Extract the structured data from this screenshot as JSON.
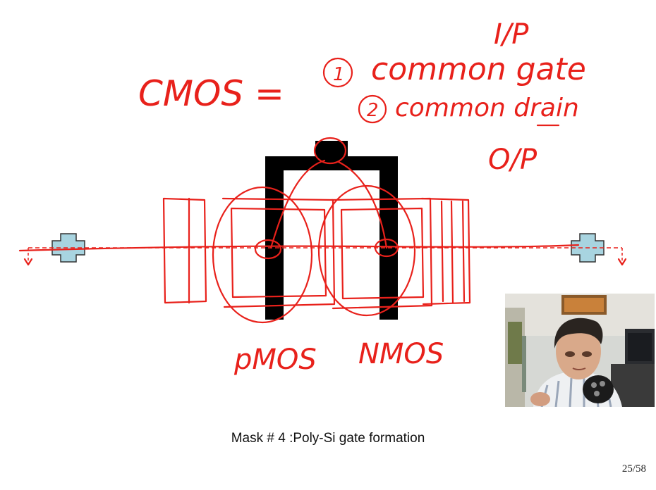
{
  "annotations": {
    "cmos": "CMOS =",
    "item1_num": "1",
    "item1_text": "common gate",
    "item2_num": "2",
    "item2_text": "common drain",
    "input": "I/P",
    "output": "O/P",
    "pmos": "pMOS",
    "nmos": "NMOS"
  },
  "caption": "Mask # 4 :Poly-Si gate formation",
  "page_number": "25/58",
  "colors": {
    "ink": "#e8211b",
    "poly_gate": "#000000",
    "contact_fill": "#a8d4e0",
    "contact_border": "#333333"
  }
}
